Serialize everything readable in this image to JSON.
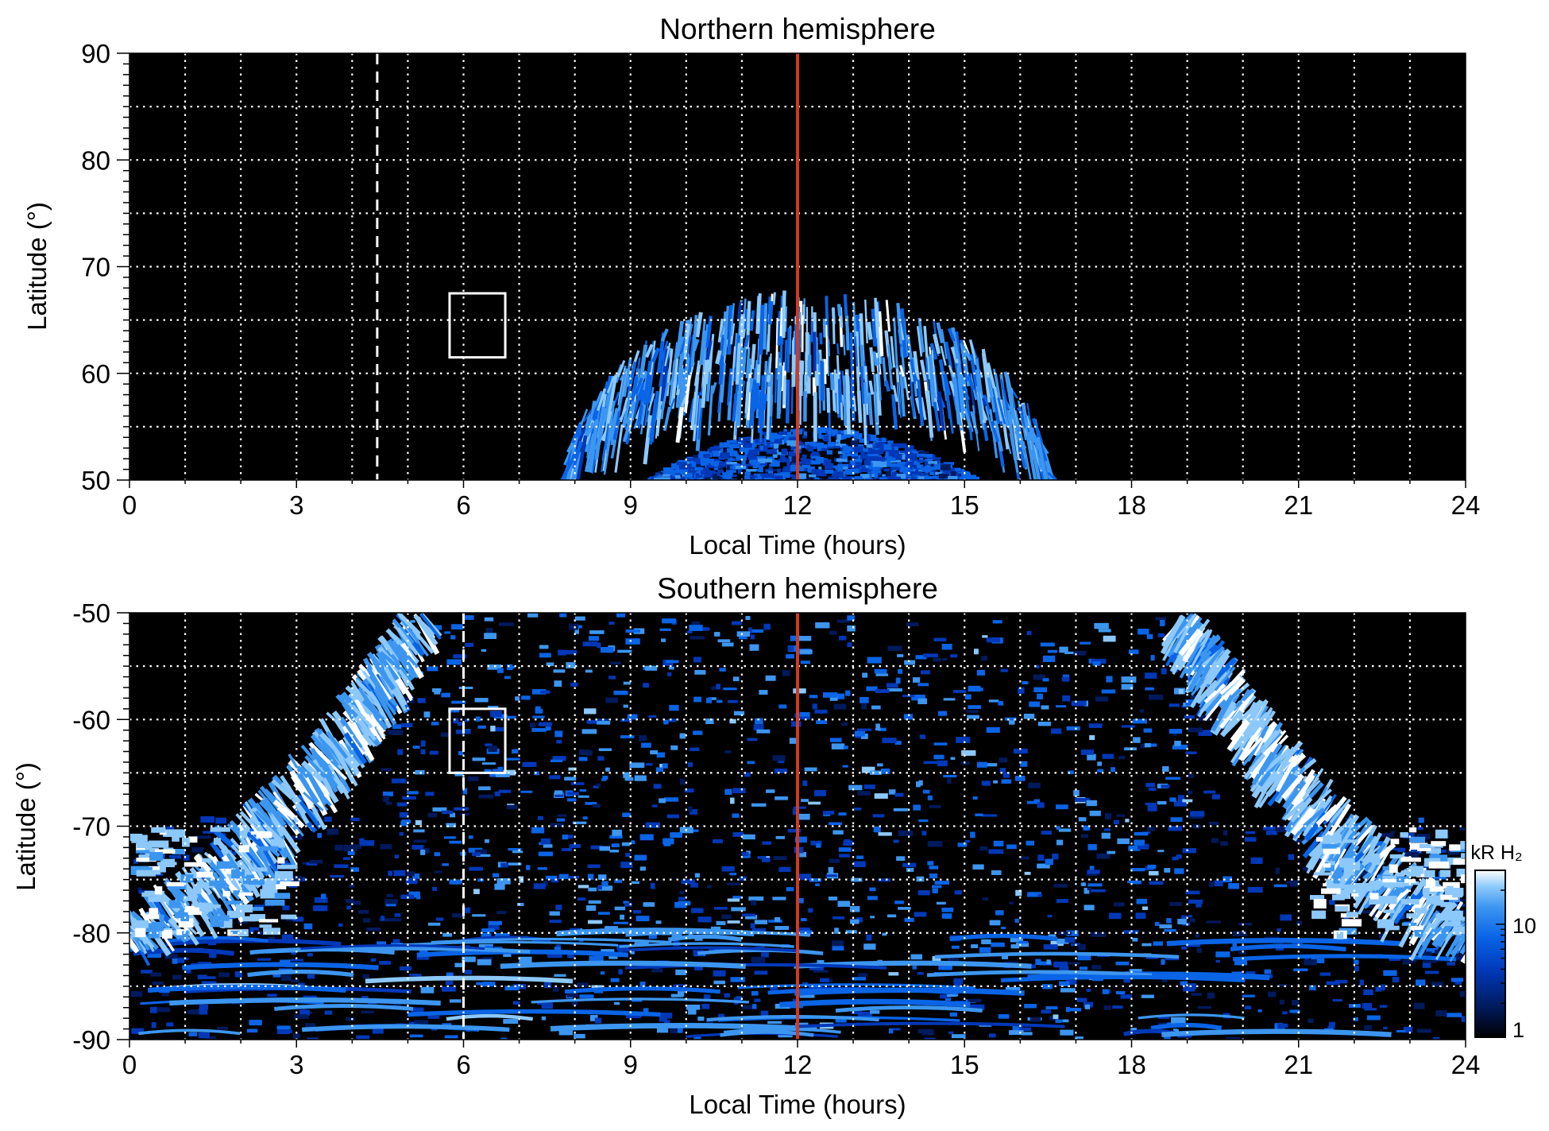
{
  "chart_data": [
    {
      "type": "heatmap",
      "title": "Northern hemisphere",
      "xlabel": "Local Time (hours)",
      "ylabel": "Latitude (°)",
      "xlim": [
        0,
        24
      ],
      "ylim": [
        50,
        90
      ],
      "x_ticks": [
        "0",
        "3",
        "6",
        "9",
        "12",
        "15",
        "18",
        "21",
        "24"
      ],
      "y_ticks": [
        "50",
        "60",
        "70",
        "80",
        "90"
      ],
      "grid": true,
      "grid_x_step": 1,
      "grid_y_step": 5,
      "vline_red_lt": 12,
      "vline_dashed_lt": 4.45,
      "box": {
        "lt": [
          5.75,
          6.75
        ],
        "lat": [
          61.5,
          67.5
        ]
      },
      "auroral_oval": {
        "center_lt": 12.2,
        "lt_half_width_outer": 4.3,
        "lat_peak_outer": 68,
        "lat_peak_inner": 58,
        "lat_base": 50
      },
      "colormap": [
        "#000000",
        "#001a5c",
        "#0038b8",
        "#0a64e6",
        "#3c96f0",
        "#8cc8fa",
        "#ffffff"
      ]
    },
    {
      "type": "heatmap",
      "title": "Southern hemisphere",
      "xlabel": "Local Time (hours)",
      "ylabel": "Latitude (°)",
      "xlim": [
        0,
        24
      ],
      "ylim": [
        -90,
        -50
      ],
      "x_ticks": [
        "0",
        "3",
        "6",
        "9",
        "12",
        "15",
        "18",
        "21",
        "24"
      ],
      "y_ticks": [
        "-90",
        "-80",
        "-70",
        "-60",
        "-50"
      ],
      "grid": true,
      "grid_x_step": 1,
      "grid_y_step": 5,
      "vline_red_lt": 12,
      "vline_dashed_lt": 6,
      "box": {
        "lt": [
          5.75,
          6.75
        ],
        "lat": [
          -65,
          -59
        ]
      },
      "colorbar": {
        "label": "kR H₂",
        "ticks": [
          "1",
          "10"
        ],
        "range_kR": [
          1,
          30
        ],
        "scale": "log"
      },
      "colormap": [
        "#000000",
        "#001a5c",
        "#0038b8",
        "#0a64e6",
        "#3c96f0",
        "#8cc8fa",
        "#ffffff"
      ]
    }
  ]
}
